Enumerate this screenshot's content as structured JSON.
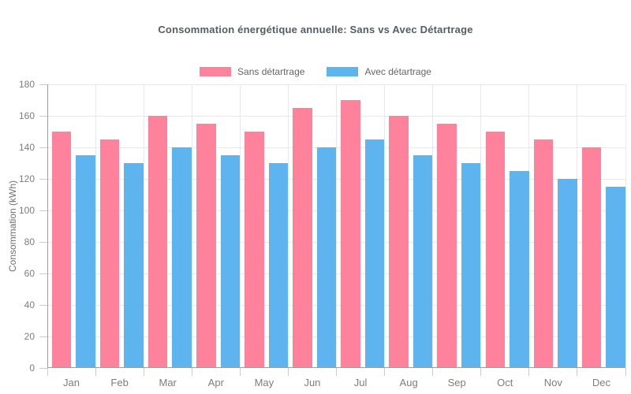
{
  "chart_data": {
    "type": "bar",
    "title": "Consommation énergétique annuelle: Sans vs Avec Détartrage",
    "xlabel": "",
    "ylabel": "Consommation (kWh)",
    "categories": [
      "Jan",
      "Feb",
      "Mar",
      "Apr",
      "May",
      "Jun",
      "Jul",
      "Aug",
      "Sep",
      "Oct",
      "Nov",
      "Dec"
    ],
    "series": [
      {
        "name": "Sans détartrage",
        "color": "#FF829D",
        "values": [
          150,
          145,
          160,
          155,
          150,
          165,
          170,
          160,
          155,
          150,
          145,
          140
        ]
      },
      {
        "name": "Avec détartrage",
        "color": "#5EB4EE",
        "values": [
          135,
          130,
          140,
          135,
          130,
          140,
          145,
          135,
          130,
          125,
          120,
          115
        ]
      }
    ],
    "ylim": [
      0,
      180
    ],
    "ytick_step": 20,
    "yticks": [
      0,
      20,
      40,
      60,
      80,
      100,
      120,
      140,
      160,
      180
    ],
    "grid": true,
    "legend_position": "top-center"
  },
  "styles": {
    "background": "#ffffff",
    "title_color": "#545d66",
    "legend_text_color": "#666666",
    "tick_text_color": "#7d7d7d",
    "axis_title_color": "#6e6e6e",
    "grid_color": "#e8e8e8",
    "axis_line_color": "#9e9e9e",
    "tick_mark_color": "#cccccc"
  }
}
